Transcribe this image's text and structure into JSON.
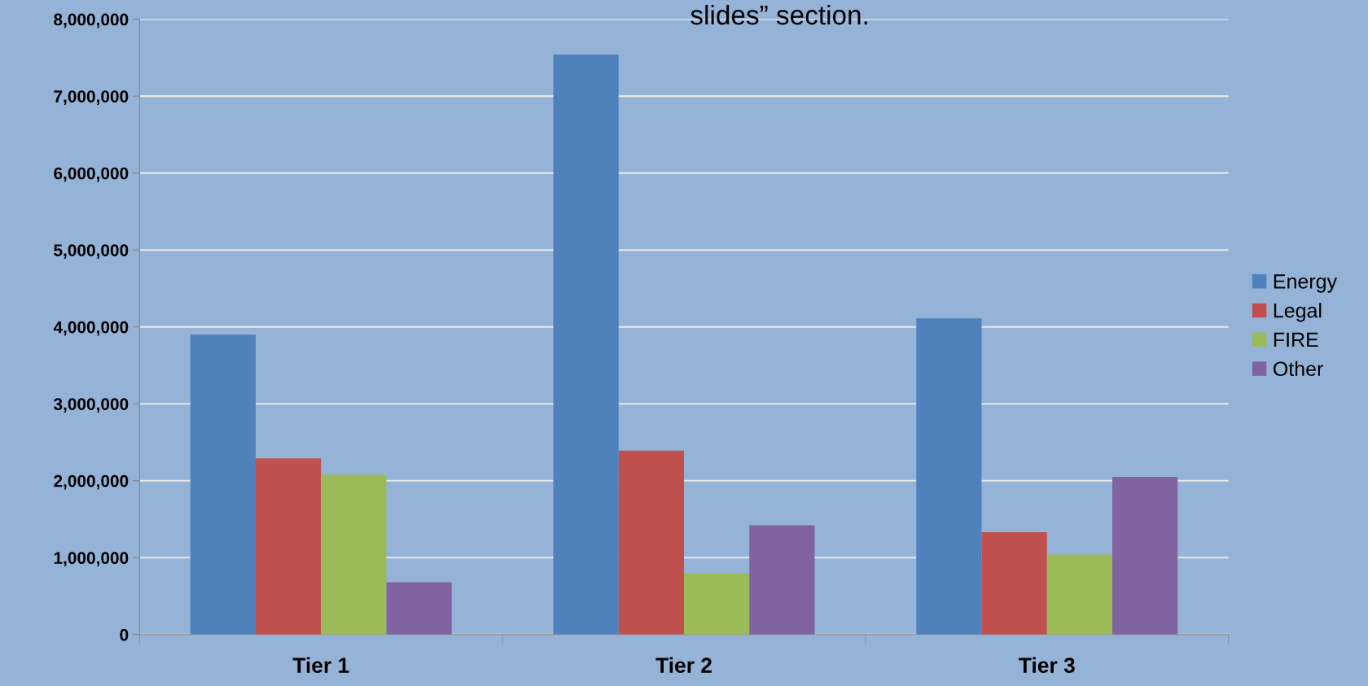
{
  "chart_data": {
    "type": "bar",
    "categories": [
      "Tier 1",
      "Tier 2",
      "Tier 3"
    ],
    "series": [
      {
        "name": "Energy",
        "color": "#4f81bd",
        "values": [
          3900000,
          7540000,
          4110000
        ]
      },
      {
        "name": "Legal",
        "color": "#c0504d",
        "values": [
          2290000,
          2390000,
          1330000
        ]
      },
      {
        "name": "FIRE",
        "color": "#9bbb59",
        "values": [
          2080000,
          800000,
          1040000
        ]
      },
      {
        "name": "Other",
        "color": "#8064a2",
        "values": [
          680000,
          1420000,
          2050000
        ]
      }
    ],
    "ylim": [
      0,
      8000000
    ],
    "yticks": [
      {
        "value": 0,
        "label": "0"
      },
      {
        "value": 1000000,
        "label": "1,000,000"
      },
      {
        "value": 2000000,
        "label": "2,000,000"
      },
      {
        "value": 3000000,
        "label": "3,000,000"
      },
      {
        "value": 4000000,
        "label": "4,000,000"
      },
      {
        "value": 5000000,
        "label": "5,000,000"
      },
      {
        "value": 6000000,
        "label": "6,000,000"
      },
      {
        "value": 7000000,
        "label": "7,000,000"
      },
      {
        "value": 8000000,
        "label": "8,000,000"
      }
    ],
    "grid": "y",
    "legend": "right",
    "annotations": [
      "slides” section."
    ]
  }
}
